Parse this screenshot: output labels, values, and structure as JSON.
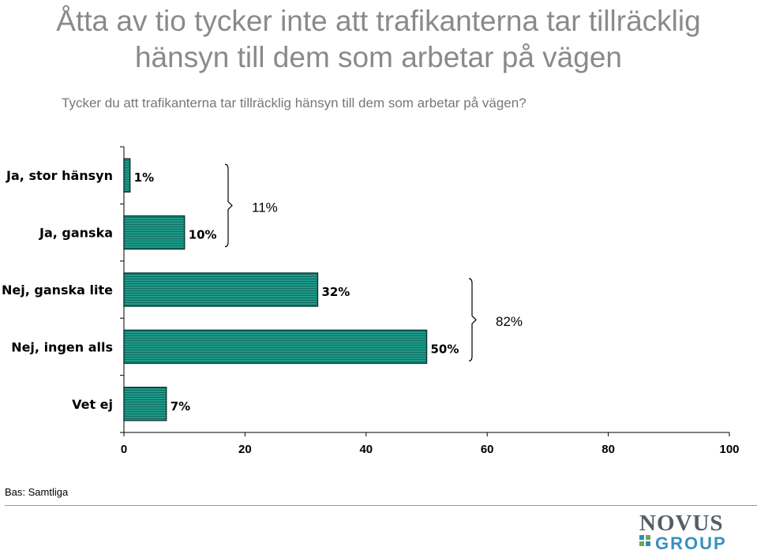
{
  "title_line1": "Åtta av tio tycker inte att trafikanterna tar tillräcklig",
  "title_line2": "hänsyn till dem som arbetar på vägen",
  "subtitle": "Tycker du att trafikanterna tar tillräcklig hänsyn till dem som arbetar på vägen?",
  "base_note": "Bas: Samtliga",
  "logo": {
    "line1": "NOVUS",
    "line2": "GROUP"
  },
  "colors": {
    "bar_fill": "#1e9a8a",
    "bar_stripe": "#0f6c60",
    "bar_edge": "#0a3d37",
    "axis": "#000000"
  },
  "chart_data": {
    "type": "bar",
    "orientation": "horizontal",
    "categories": [
      "Ja, stor hänsyn",
      "Ja, ganska",
      "Nej, ganska lite",
      "Nej, ingen alls",
      "Vet ej"
    ],
    "values": [
      1,
      10,
      32,
      50,
      7
    ],
    "value_labels": [
      "1%",
      "10%",
      "32%",
      "50%",
      "7%"
    ],
    "xlim": [
      0,
      100
    ],
    "xticks": [
      0,
      20,
      40,
      60,
      80,
      100
    ],
    "groups": [
      {
        "first": 0,
        "last": 1,
        "label": "11%"
      },
      {
        "first": 2,
        "last": 3,
        "label": "82%"
      }
    ]
  }
}
